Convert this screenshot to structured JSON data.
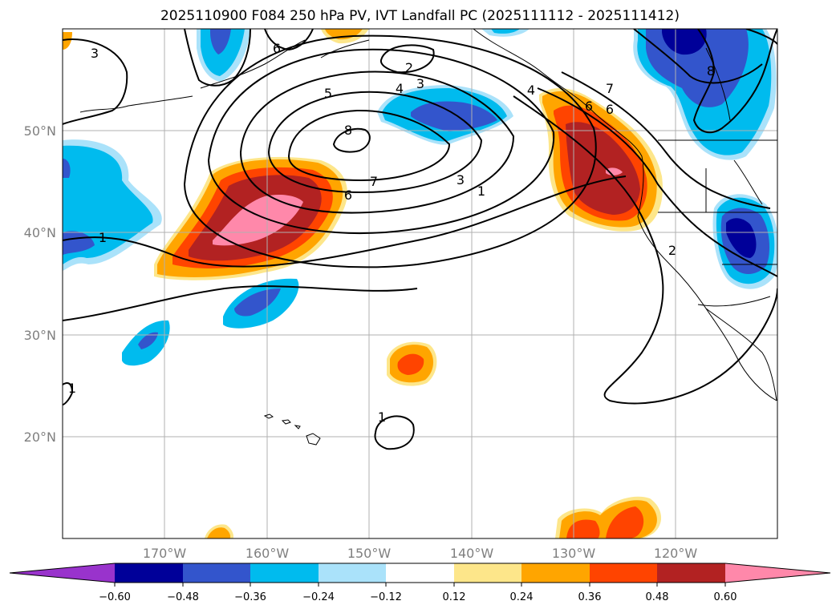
{
  "title": "2025110900 F084 250 hPa PV, IVT Landfall PC (2025111112 - 2025111412)",
  "map": {
    "projection": "lat-lon",
    "lon_range": [
      -180,
      -110
    ],
    "lat_range": [
      10,
      60
    ],
    "lat_labels": [
      "50°N",
      "40°N",
      "30°N",
      "20°N"
    ],
    "lon_labels": [
      "170°W",
      "160°W",
      "150°W",
      "140°W",
      "130°W",
      "120°W"
    ],
    "contour_labels": [
      "3",
      "6",
      "2",
      "3",
      "4",
      "5",
      "8",
      "7",
      "6",
      "3",
      "1",
      "1",
      "1",
      "4",
      "6",
      "6",
      "7",
      "2",
      "8",
      "1"
    ]
  },
  "colorbar": {
    "colors": [
      "#9933cc",
      "#000099",
      "#3355cc",
      "#00bbee",
      "#aae2fa",
      "#ffffff",
      "#fde68a",
      "#ffa500",
      "#ff4400",
      "#b22222",
      "#ff88aa"
    ],
    "tick_labels": [
      "−0.60",
      "−0.48",
      "−0.36",
      "−0.24",
      "−0.12",
      "0.12",
      "0.24",
      "0.36",
      "0.48",
      "0.60"
    ],
    "ticks": [
      -0.6,
      -0.48,
      -0.36,
      -0.24,
      -0.12,
      0.12,
      0.24,
      0.36,
      0.48,
      0.6
    ]
  }
}
